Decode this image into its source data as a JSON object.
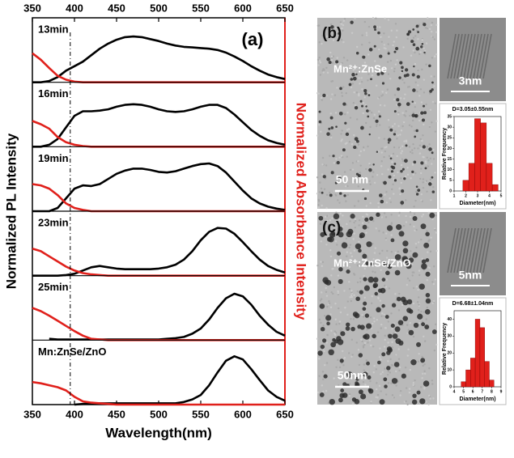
{
  "chart_data": [
    {
      "type": "line",
      "panel_label": "(a)",
      "xlabel": "Wavelength(nm)",
      "ylabel": "Normalized PL Intensity",
      "y2label": "Normalized Absorbance Intensity",
      "xlim": [
        350,
        650
      ],
      "xticks": [
        350,
        400,
        450,
        500,
        550,
        600,
        650
      ],
      "ylim": [
        0,
        1
      ],
      "reference_line_x": 395,
      "x": [
        350,
        360,
        370,
        380,
        390,
        400,
        410,
        420,
        430,
        440,
        450,
        460,
        470,
        480,
        490,
        500,
        510,
        520,
        530,
        540,
        550,
        560,
        570,
        580,
        590,
        600,
        610,
        620,
        630,
        640,
        650
      ],
      "panels": [
        {
          "label": "13min",
          "series": [
            {
              "color": "#000000",
              "values": [
                0,
                0,
                0.02,
                0.08,
                0.18,
                0.25,
                0.32,
                0.42,
                0.52,
                0.6,
                0.66,
                0.7,
                0.71,
                0.7,
                0.67,
                0.64,
                0.6,
                0.57,
                0.55,
                0.54,
                0.53,
                0.52,
                0.5,
                0.46,
                0.4,
                0.33,
                0.25,
                0.18,
                0.12,
                0.08,
                0.05
              ]
            },
            {
              "color": "#e0201b",
              "values": [
                0.45,
                0.35,
                0.22,
                0.1,
                0.04,
                0.01,
                0,
                0,
                0,
                0,
                0,
                0,
                0,
                0,
                0,
                0,
                0,
                0,
                0,
                0,
                0,
                0,
                0,
                0,
                0,
                0,
                0,
                0,
                0,
                0,
                0
              ]
            }
          ]
        },
        {
          "label": "16min",
          "series": [
            {
              "color": "#000000",
              "values": [
                0,
                0,
                0.03,
                0.12,
                0.3,
                0.48,
                0.55,
                0.55,
                0.56,
                0.58,
                0.62,
                0.65,
                0.66,
                0.65,
                0.62,
                0.58,
                0.55,
                0.54,
                0.55,
                0.58,
                0.62,
                0.65,
                0.65,
                0.6,
                0.5,
                0.38,
                0.26,
                0.17,
                0.1,
                0.06,
                0.03
              ]
            },
            {
              "color": "#e0201b",
              "values": [
                0.4,
                0.35,
                0.28,
                0.15,
                0.07,
                0.03,
                0.01,
                0,
                0,
                0,
                0,
                0,
                0,
                0,
                0,
                0,
                0,
                0,
                0,
                0,
                0,
                0,
                0,
                0,
                0,
                0,
                0,
                0,
                0,
                0,
                0
              ]
            }
          ]
        },
        {
          "label": "19min",
          "series": [
            {
              "color": "#000000",
              "values": [
                0,
                0,
                0,
                0.05,
                0.2,
                0.35,
                0.4,
                0.39,
                0.42,
                0.5,
                0.58,
                0.63,
                0.66,
                0.66,
                0.64,
                0.61,
                0.6,
                0.62,
                0.66,
                0.7,
                0.73,
                0.74,
                0.7,
                0.6,
                0.46,
                0.32,
                0.2,
                0.12,
                0.07,
                0.04,
                0.02
              ]
            },
            {
              "color": "#e0201b",
              "values": [
                0.42,
                0.4,
                0.35,
                0.25,
                0.12,
                0.05,
                0.02,
                0,
                0,
                0,
                0,
                0,
                0,
                0,
                0,
                0,
                0,
                0,
                0,
                0,
                0,
                0,
                0,
                0,
                0,
                0,
                0,
                0,
                0,
                0,
                0
              ]
            }
          ]
        },
        {
          "label": "23min",
          "series": [
            {
              "color": "#000000",
              "values": [
                0,
                0,
                0,
                0,
                0.01,
                0.03,
                0.08,
                0.13,
                0.15,
                0.13,
                0.11,
                0.1,
                0.1,
                0.1,
                0.1,
                0.11,
                0.13,
                0.17,
                0.25,
                0.38,
                0.55,
                0.68,
                0.74,
                0.73,
                0.65,
                0.52,
                0.38,
                0.25,
                0.15,
                0.09,
                0.05
              ]
            },
            {
              "color": "#e0201b",
              "values": [
                0.42,
                0.38,
                0.3,
                0.22,
                0.14,
                0.08,
                0.04,
                0.02,
                0.01,
                0,
                0,
                0,
                0,
                0,
                0,
                0,
                0,
                0,
                0,
                0,
                0,
                0,
                0,
                0,
                0,
                0,
                0,
                0,
                0,
                0,
                0
              ]
            }
          ]
        },
        {
          "label": "25min",
          "series": [
            {
              "color": "#000000",
              "values": [
                null,
                null,
                0.02,
                0.01,
                0.01,
                0.01,
                0.01,
                0.01,
                0.01,
                0.01,
                0.01,
                0.01,
                0.01,
                0.01,
                0.01,
                0.01,
                0.02,
                0.03,
                0.05,
                0.1,
                0.18,
                0.32,
                0.5,
                0.65,
                0.72,
                0.68,
                0.55,
                0.38,
                0.24,
                0.13,
                0.07
              ]
            },
            {
              "color": "#e0201b",
              "values": [
                0.5,
                0.45,
                0.38,
                0.3,
                0.22,
                0.14,
                0.07,
                0.02,
                0.01,
                0,
                0,
                0,
                0,
                0,
                0,
                0,
                0,
                0,
                0,
                0,
                0,
                0,
                0,
                0,
                0,
                0,
                0,
                0,
                0,
                0,
                0
              ]
            }
          ]
        },
        {
          "label": "Mn:ZnSe/ZnO",
          "series": [
            {
              "color": "#000000",
              "values": [
                null,
                null,
                null,
                null,
                null,
                0,
                0.01,
                0.02,
                0.02,
                0.02,
                0.02,
                0.02,
                0.02,
                0.02,
                0.02,
                0.02,
                0.02,
                0.02,
                0.04,
                0.08,
                0.15,
                0.3,
                0.5,
                0.68,
                0.75,
                0.7,
                0.55,
                0.38,
                0.22,
                0.12,
                0.06
              ]
            },
            {
              "color": "#e0201b",
              "values": [
                0.35,
                0.33,
                0.3,
                0.27,
                0.22,
                0.12,
                0.05,
                0.03,
                0.02,
                0.01,
                0,
                0,
                0,
                0,
                0,
                0,
                0,
                0,
                0,
                0,
                0,
                0,
                0,
                0,
                0,
                0,
                0,
                0,
                0,
                0,
                0
              ]
            }
          ]
        }
      ]
    },
    {
      "type": "histogram",
      "title": "D=3.05±0.55nm",
      "xlabel": "Diameter(nm)",
      "ylabel": "Relative Frequency",
      "color": "#e0201b",
      "bins": [
        1.75,
        2.25,
        2.75,
        3.25,
        3.75,
        4.25,
        4.75
      ],
      "counts": [
        5,
        13,
        34,
        32,
        13,
        3
      ],
      "xlim": [
        1,
        5
      ],
      "xticks": [
        1,
        2,
        3,
        4,
        5
      ],
      "ylim": [
        0,
        35
      ],
      "yticks": [
        0,
        5,
        10,
        15,
        20,
        25,
        30,
        35
      ]
    },
    {
      "type": "histogram",
      "title": "D=6.68±1.04nm",
      "xlabel": "Diameter(nm)",
      "ylabel": "Relative Frequency",
      "color": "#e0201b",
      "bins": [
        4.75,
        5.25,
        5.75,
        6.25,
        6.75,
        7.25,
        7.75,
        8.25
      ],
      "counts": [
        3,
        10,
        17,
        40,
        35,
        15,
        4
      ],
      "xlim": [
        4,
        9
      ],
      "xticks": [
        4,
        5,
        6,
        7,
        8,
        9
      ],
      "ylim": [
        0,
        45
      ],
      "yticks": [
        0,
        10,
        20,
        30,
        40
      ]
    }
  ],
  "images": [
    {
      "label": "(b)",
      "sample": "Mn²⁺:ZnSe",
      "scale_bar": "50 nm",
      "inset_scale_bar": "3nm"
    },
    {
      "label": "(c)",
      "sample": "Mn²⁺:ZnSe/ZnO",
      "scale_bar": "50nm",
      "inset_scale_bar": "5nm"
    }
  ]
}
